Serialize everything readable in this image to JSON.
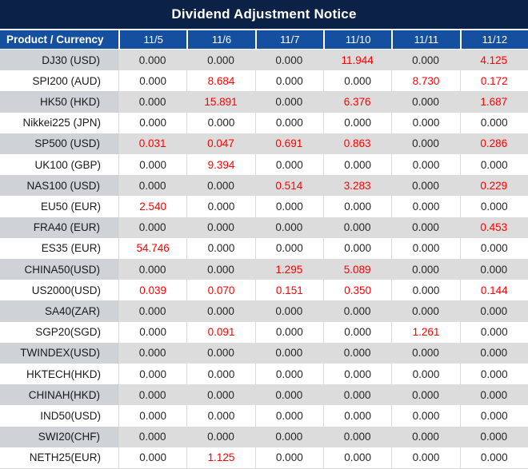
{
  "title": "Dividend Adjustment Notice",
  "colors": {
    "title_bg": "#0c2146",
    "header_bg": "#1550a0",
    "red": "#fe0000",
    "row_gray": "#dcdcdc",
    "row_gray_first": "#cfd2d7",
    "white_row_divider": "#d9d9d9"
  },
  "columns": [
    "Product / Currency",
    "11/5",
    "11/6",
    "11/7",
    "11/10",
    "11/11",
    "11/12"
  ],
  "rows": [
    {
      "product": "DJ30 (USD)",
      "values": [
        "0.000",
        "0.000",
        "0.000",
        "11.944",
        "0.000",
        "4.125"
      ],
      "red": [
        3,
        5
      ]
    },
    {
      "product": "SPI200 (AUD)",
      "values": [
        "0.000",
        "8.684",
        "0.000",
        "0.000",
        "8.730",
        "0.172"
      ],
      "red": [
        1,
        4,
        5
      ]
    },
    {
      "product": "HK50 (HKD)",
      "values": [
        "0.000",
        "15.891",
        "0.000",
        "6.376",
        "0.000",
        "1.687"
      ],
      "red": [
        1,
        3,
        5
      ]
    },
    {
      "product": "Nikkei225 (JPN)",
      "values": [
        "0.000",
        "0.000",
        "0.000",
        "0.000",
        "0.000",
        "0.000"
      ],
      "red": []
    },
    {
      "product": "SP500 (USD)",
      "values": [
        "0.031",
        "0.047",
        "0.691",
        "0.863",
        "0.000",
        "0.286"
      ],
      "red": [
        0,
        1,
        2,
        3,
        5
      ]
    },
    {
      "product": "UK100 (GBP)",
      "values": [
        "0.000",
        "9.394",
        "0.000",
        "0.000",
        "0.000",
        "0.000"
      ],
      "red": [
        1
      ]
    },
    {
      "product": "NAS100 (USD)",
      "values": [
        "0.000",
        "0.000",
        "0.514",
        "3.283",
        "0.000",
        "0.229"
      ],
      "red": [
        2,
        3,
        5
      ]
    },
    {
      "product": "EU50 (EUR)",
      "values": [
        "2.540",
        "0.000",
        "0.000",
        "0.000",
        "0.000",
        "0.000"
      ],
      "red": [
        0
      ]
    },
    {
      "product": "FRA40 (EUR)",
      "values": [
        "0.000",
        "0.000",
        "0.000",
        "0.000",
        "0.000",
        "0.453"
      ],
      "red": [
        5
      ]
    },
    {
      "product": "ES35 (EUR)",
      "values": [
        "54.746",
        "0.000",
        "0.000",
        "0.000",
        "0.000",
        "0.000"
      ],
      "red": [
        0
      ]
    },
    {
      "product": "CHINA50(USD)",
      "values": [
        "0.000",
        "0.000",
        "1.295",
        "5.089",
        "0.000",
        "0.000"
      ],
      "red": [
        2,
        3
      ]
    },
    {
      "product": "US2000(USD)",
      "values": [
        "0.039",
        "0.070",
        "0.151",
        "0.350",
        "0.000",
        "0.144"
      ],
      "red": [
        0,
        1,
        2,
        3,
        5
      ]
    },
    {
      "product": "SA40(ZAR)",
      "values": [
        "0.000",
        "0.000",
        "0.000",
        "0.000",
        "0.000",
        "0.000"
      ],
      "red": []
    },
    {
      "product": "SGP20(SGD)",
      "values": [
        "0.000",
        "0.091",
        "0.000",
        "0.000",
        "1.261",
        "0.000"
      ],
      "red": [
        1,
        4
      ]
    },
    {
      "product": "TWINDEX(USD)",
      "values": [
        "0.000",
        "0.000",
        "0.000",
        "0.000",
        "0.000",
        "0.000"
      ],
      "red": []
    },
    {
      "product": "HKTECH(HKD)",
      "values": [
        "0.000",
        "0.000",
        "0.000",
        "0.000",
        "0.000",
        "0.000"
      ],
      "red": []
    },
    {
      "product": "CHINAH(HKD)",
      "values": [
        "0.000",
        "0.000",
        "0.000",
        "0.000",
        "0.000",
        "0.000"
      ],
      "red": []
    },
    {
      "product": "IND50(USD)",
      "values": [
        "0.000",
        "0.000",
        "0.000",
        "0.000",
        "0.000",
        "0.000"
      ],
      "red": []
    },
    {
      "product": "SWI20(CHF)",
      "values": [
        "0.000",
        "0.000",
        "0.000",
        "0.000",
        "0.000",
        "0.000"
      ],
      "red": []
    },
    {
      "product": "NETH25(EUR)",
      "values": [
        "0.000",
        "1.125",
        "0.000",
        "0.000",
        "0.000",
        "0.000"
      ],
      "red": [
        1
      ]
    }
  ]
}
